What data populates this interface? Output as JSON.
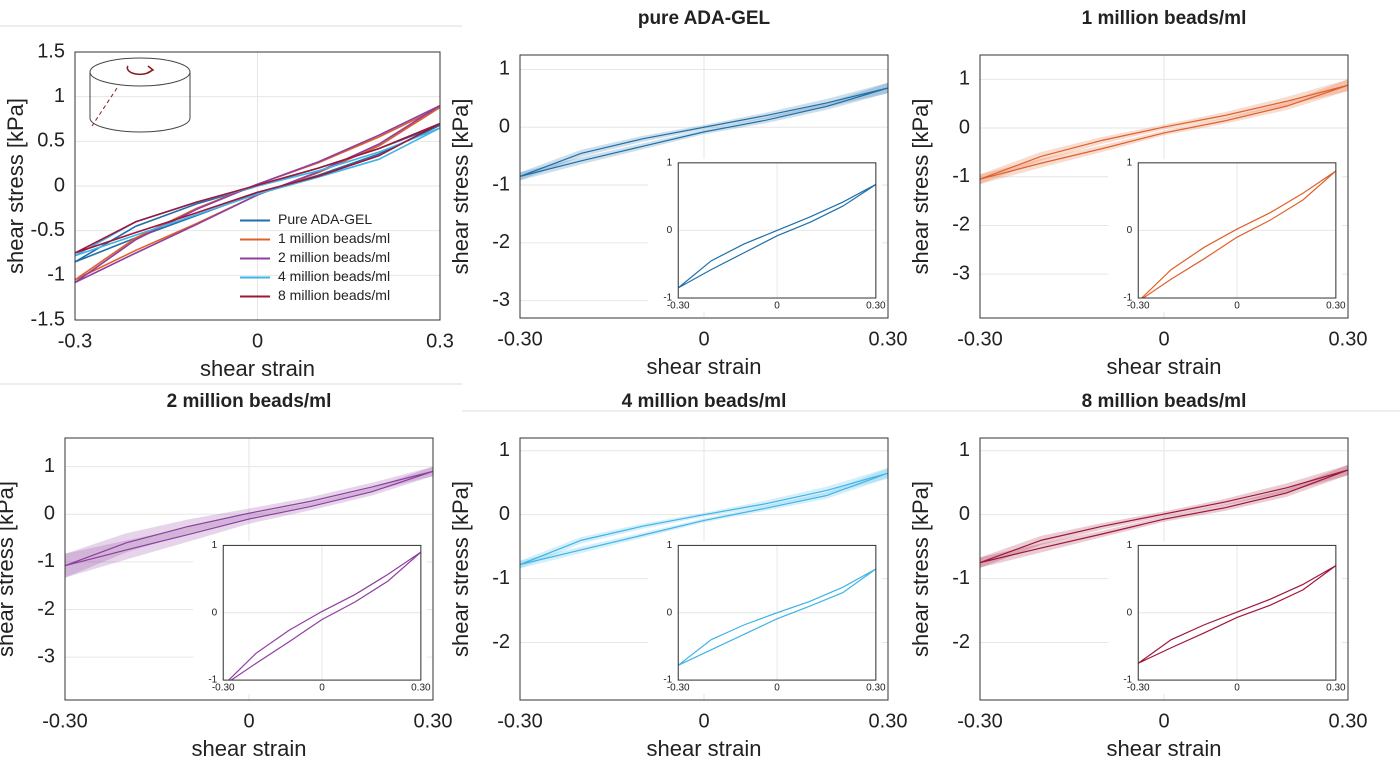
{
  "chart_data": [
    {
      "type": "line",
      "xlabel": "shear strain",
      "ylabel": "shear stress [kPa]",
      "xlim": [
        -0.3,
        0.3
      ],
      "xticks": [
        -0.3,
        0,
        0.3
      ],
      "ylim": [
        -1.5,
        1.5
      ],
      "yticks": [
        -1.5,
        -1,
        -0.5,
        0,
        0.5,
        1,
        1.5
      ],
      "grid": true,
      "legend": "lower right",
      "x": [
        -0.3,
        -0.2,
        -0.1,
        0,
        0.1,
        0.2,
        0.3,
        0.2,
        0.1,
        0,
        -0.1,
        -0.2,
        -0.3
      ],
      "series": [
        {
          "name": "Pure ADA-GEL",
          "color": "#1f6fa8",
          "values": [
            -0.85,
            -0.58,
            -0.33,
            -0.08,
            0.12,
            0.36,
            0.68,
            0.42,
            0.2,
            0.0,
            -0.2,
            -0.45,
            -0.85
          ]
        },
        {
          "name": "1 million beads/ml",
          "color": "#e0602a",
          "values": [
            -1.05,
            -0.72,
            -0.42,
            -0.1,
            0.15,
            0.45,
            0.88,
            0.55,
            0.26,
            0.02,
            -0.25,
            -0.58,
            -1.05
          ]
        },
        {
          "name": "2 million beads/ml",
          "color": "#8e3fa0",
          "values": [
            -1.08,
            -0.75,
            -0.43,
            -0.1,
            0.16,
            0.47,
            0.9,
            0.57,
            0.27,
            0.02,
            -0.26,
            -0.6,
            -1.08
          ]
        },
        {
          "name": "4 million beads/ml",
          "color": "#3fb4e6",
          "values": [
            -0.78,
            -0.55,
            -0.32,
            -0.09,
            0.1,
            0.3,
            0.65,
            0.38,
            0.17,
            0.0,
            -0.18,
            -0.4,
            -0.78
          ]
        },
        {
          "name": "8 million beads/ml",
          "color": "#a0163a",
          "values": [
            -0.75,
            -0.52,
            -0.3,
            -0.07,
            0.11,
            0.34,
            0.7,
            0.42,
            0.2,
            0.01,
            -0.18,
            -0.4,
            -0.75
          ]
        }
      ]
    },
    {
      "type": "line",
      "title": "pure ADA-GEL",
      "xlabel": "shear strain",
      "ylabel": "shear stress [kPa]",
      "xlim": [
        -0.3,
        0.3
      ],
      "xticks": [
        {
          "value": -0.3,
          "label": "-0.30"
        },
        0,
        {
          "value": 0.3,
          "label": "0.30"
        }
      ],
      "ylim": [
        -3.3,
        1.25
      ],
      "yticks": [
        -3,
        -2,
        -1,
        0,
        1
      ],
      "grid": true,
      "x": [
        -0.3,
        -0.2,
        -0.1,
        0,
        0.1,
        0.2,
        0.3,
        0.2,
        0.1,
        0,
        -0.1,
        -0.2,
        -0.3
      ],
      "series": [
        {
          "color": "#1f6fa8",
          "values": [
            -0.85,
            -0.58,
            -0.33,
            -0.08,
            0.12,
            0.36,
            0.68,
            0.42,
            0.2,
            0.0,
            -0.2,
            -0.45,
            -0.85
          ],
          "errors": [
            0.07,
            0.06,
            0.05,
            0.04,
            0.05,
            0.06,
            0.09,
            0.07,
            0.05,
            0.04,
            0.05,
            0.06,
            0.07
          ]
        }
      ],
      "inset": {
        "xlim": [
          -0.3,
          0.3
        ],
        "xticks": [
          {
            "value": -0.3,
            "label": "-0.30"
          },
          0,
          {
            "value": 0.3,
            "label": "0.30"
          }
        ],
        "ylim": [
          -1,
          1
        ],
        "yticks": [
          -1,
          0,
          1
        ]
      }
    },
    {
      "type": "line",
      "title": "1 million beads/ml",
      "xlabel": "shear strain",
      "ylabel": "shear stress [kPa]",
      "xlim": [
        -0.3,
        0.3
      ],
      "xticks": [
        {
          "value": -0.3,
          "label": "-0.30"
        },
        0,
        {
          "value": 0.3,
          "label": "0.30"
        }
      ],
      "ylim": [
        -3.9,
        1.5
      ],
      "yticks": [
        -3,
        -2,
        -1,
        0,
        1
      ],
      "grid": true,
      "x": [
        -0.3,
        -0.2,
        -0.1,
        0,
        0.1,
        0.2,
        0.3,
        0.2,
        0.1,
        0,
        -0.1,
        -0.2,
        -0.3
      ],
      "series": [
        {
          "color": "#e0602a",
          "values": [
            -1.05,
            -0.72,
            -0.42,
            -0.1,
            0.15,
            0.45,
            0.88,
            0.55,
            0.26,
            0.02,
            -0.25,
            -0.58,
            -1.05
          ],
          "errors": [
            0.1,
            0.09,
            0.07,
            0.05,
            0.06,
            0.08,
            0.12,
            0.09,
            0.07,
            0.05,
            0.07,
            0.09,
            0.1
          ]
        }
      ],
      "inset": {
        "xlim": [
          -0.3,
          0.3
        ],
        "xticks": [
          {
            "value": -0.3,
            "label": "-0.30"
          },
          0,
          {
            "value": 0.3,
            "label": "0.30"
          }
        ],
        "ylim": [
          -1,
          1
        ],
        "yticks": [
          -1,
          0,
          1
        ]
      }
    },
    {
      "type": "line",
      "title": "2 million beads/ml",
      "xlabel": "shear strain",
      "ylabel": "shear stress [kPa]",
      "xlim": [
        -0.3,
        0.3
      ],
      "xticks": [
        {
          "value": -0.3,
          "label": "-0.30"
        },
        0,
        {
          "value": 0.3,
          "label": "0.30"
        }
      ],
      "ylim": [
        -3.9,
        1.6
      ],
      "yticks": [
        -3,
        -2,
        -1,
        0,
        1
      ],
      "grid": true,
      "x": [
        -0.3,
        -0.2,
        -0.1,
        0,
        0.1,
        0.2,
        0.3,
        0.2,
        0.1,
        0,
        -0.1,
        -0.2,
        -0.3
      ],
      "series": [
        {
          "color": "#8e3fa0",
          "values": [
            -1.08,
            -0.75,
            -0.43,
            -0.1,
            0.16,
            0.47,
            0.9,
            0.57,
            0.27,
            0.02,
            -0.26,
            -0.6,
            -1.08
          ],
          "errors": [
            0.25,
            0.2,
            0.15,
            0.1,
            0.08,
            0.08,
            0.1,
            0.09,
            0.09,
            0.1,
            0.15,
            0.2,
            0.25
          ]
        }
      ],
      "inset": {
        "xlim": [
          -0.3,
          0.3
        ],
        "xticks": [
          {
            "value": -0.3,
            "label": "-0.30"
          },
          0,
          {
            "value": 0.3,
            "label": "0.30"
          }
        ],
        "ylim": [
          -1,
          1
        ],
        "yticks": [
          -1,
          0,
          1
        ]
      }
    },
    {
      "type": "line",
      "title": "4 million beads/ml",
      "xlabel": "shear strain",
      "ylabel": "shear stress [kPa]",
      "xlim": [
        -0.3,
        0.3
      ],
      "xticks": [
        {
          "value": -0.3,
          "label": "-0.30"
        },
        0,
        {
          "value": 0.3,
          "label": "0.30"
        }
      ],
      "ylim": [
        -2.9,
        1.2
      ],
      "yticks": [
        -2,
        -1,
        0,
        1
      ],
      "grid": true,
      "x": [
        -0.3,
        -0.2,
        -0.1,
        0,
        0.1,
        0.2,
        0.3,
        0.2,
        0.1,
        0,
        -0.1,
        -0.2,
        -0.3
      ],
      "series": [
        {
          "color": "#3fb4e6",
          "values": [
            -0.78,
            -0.55,
            -0.32,
            -0.09,
            0.1,
            0.3,
            0.65,
            0.38,
            0.17,
            0.0,
            -0.18,
            -0.4,
            -0.78
          ],
          "errors": [
            0.06,
            0.05,
            0.04,
            0.03,
            0.04,
            0.05,
            0.08,
            0.06,
            0.05,
            0.03,
            0.04,
            0.05,
            0.06
          ]
        }
      ],
      "inset": {
        "xlim": [
          -0.3,
          0.3
        ],
        "xticks": [
          {
            "value": -0.3,
            "label": "-0.30"
          },
          0,
          {
            "value": 0.3,
            "label": "0.30"
          }
        ],
        "ylim": [
          -1,
          1
        ],
        "yticks": [
          -1,
          0,
          1
        ]
      }
    },
    {
      "type": "line",
      "title": "8 million beads/ml",
      "xlabel": "shear strain",
      "ylabel": "shear stress [kPa]",
      "xlim": [
        -0.3,
        0.3
      ],
      "xticks": [
        {
          "value": -0.3,
          "label": "-0.30"
        },
        0,
        {
          "value": 0.3,
          "label": "0.30"
        }
      ],
      "ylim": [
        -2.9,
        1.2
      ],
      "yticks": [
        -2,
        -1,
        0,
        1
      ],
      "grid": true,
      "x": [
        -0.3,
        -0.2,
        -0.1,
        0,
        0.1,
        0.2,
        0.3,
        0.2,
        0.1,
        0,
        -0.1,
        -0.2,
        -0.3
      ],
      "series": [
        {
          "color": "#a0163a",
          "values": [
            -0.75,
            -0.52,
            -0.3,
            -0.07,
            0.11,
            0.34,
            0.7,
            0.42,
            0.2,
            0.01,
            -0.18,
            -0.4,
            -0.75
          ],
          "errors": [
            0.08,
            0.07,
            0.05,
            0.04,
            0.05,
            0.06,
            0.08,
            0.07,
            0.05,
            0.04,
            0.05,
            0.07,
            0.08
          ]
        }
      ],
      "inset": {
        "xlim": [
          -0.3,
          0.3
        ],
        "xticks": [
          {
            "value": -0.3,
            "label": "-0.30"
          },
          0,
          {
            "value": 0.3,
            "label": "0.30"
          }
        ],
        "ylim": [
          -1,
          1
        ],
        "yticks": [
          -1,
          0,
          1
        ]
      }
    }
  ]
}
